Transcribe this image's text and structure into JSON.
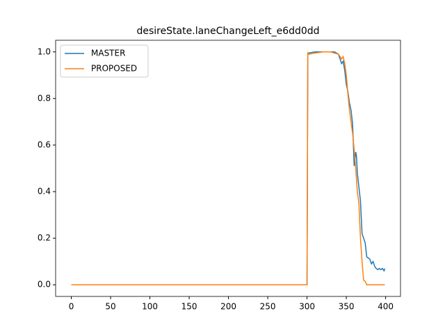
{
  "chart_data": {
    "type": "line",
    "title": "desireState.laneChangeLeft_e6dd0dd",
    "x": [
      0,
      300,
      301,
      302,
      310,
      320,
      330,
      335,
      340,
      342,
      344,
      346,
      348,
      350,
      352,
      354,
      356,
      358,
      360,
      362,
      363,
      364,
      366,
      368,
      370,
      372,
      374,
      376,
      378,
      380,
      382,
      384,
      386,
      388,
      390,
      392,
      394,
      396,
      398,
      399
    ],
    "series": [
      {
        "name": "MASTER",
        "color": "#1f77b4",
        "values": [
          0,
          0,
          0.99,
          0.995,
          1.0,
          1.0,
          1.0,
          1.0,
          0.99,
          0.97,
          0.95,
          0.96,
          0.92,
          0.86,
          0.83,
          0.78,
          0.75,
          0.69,
          0.51,
          0.57,
          0.55,
          0.48,
          0.42,
          0.36,
          0.22,
          0.2,
          0.18,
          0.12,
          0.115,
          0.11,
          0.09,
          0.1,
          0.08,
          0.07,
          0.065,
          0.07,
          0.065,
          0.07,
          0.06,
          0.07
        ]
      },
      {
        "name": "PROPOSED",
        "color": "#ff7f0e",
        "values": [
          0,
          0,
          0.995,
          0.99,
          0.995,
          1.0,
          1.0,
          0.995,
          0.99,
          0.98,
          0.97,
          0.98,
          0.95,
          0.9,
          0.82,
          0.75,
          0.7,
          0.65,
          0.58,
          0.5,
          0.45,
          0.4,
          0.35,
          0.2,
          0.1,
          0.02,
          0.015,
          0,
          0,
          0,
          0,
          0,
          0,
          0,
          0,
          0,
          0,
          0,
          0,
          0
        ]
      }
    ],
    "xlim": [
      -19.95,
      418.95
    ],
    "xticks": [
      0,
      50,
      100,
      150,
      200,
      250,
      300,
      350,
      400
    ],
    "ylim": [
      -0.05,
      1.05
    ],
    "yticks": [
      {
        "value": 0,
        "label": "0.0"
      },
      {
        "value": 0.2,
        "label": "0.2"
      },
      {
        "value": 0.4,
        "label": "0.4"
      },
      {
        "value": 0.6,
        "label": "0.6"
      },
      {
        "value": 0.8,
        "label": "0.8"
      },
      {
        "value": 1,
        "label": "1.0"
      }
    ],
    "legend": "upper left"
  }
}
